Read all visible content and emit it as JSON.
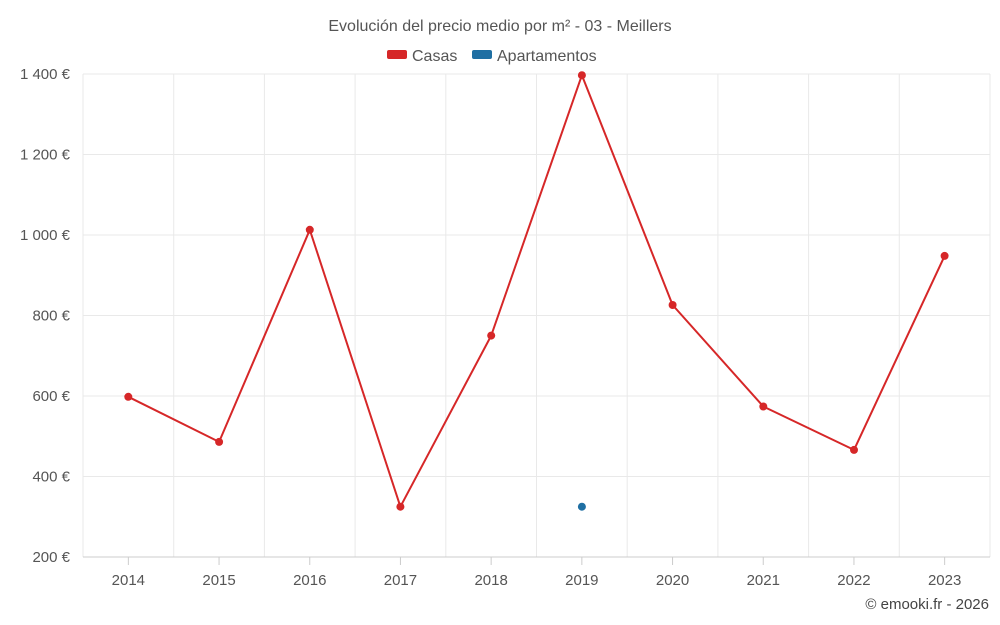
{
  "chart_data": {
    "type": "line",
    "title": "Evolución del precio medio por m² - 03 - Meillers",
    "categories": [
      "2014",
      "2015",
      "2016",
      "2017",
      "2018",
      "2019",
      "2020",
      "2021",
      "2022",
      "2023"
    ],
    "series": [
      {
        "name": "Casas",
        "color": "#d62728",
        "values": [
          598,
          486,
          1013,
          325,
          750,
          1397,
          826,
          574,
          466,
          948
        ]
      },
      {
        "name": "Apartamentos",
        "color": "#1f6fa3",
        "values": [
          null,
          null,
          null,
          null,
          null,
          325,
          null,
          null,
          null,
          null
        ]
      }
    ],
    "ylim": [
      200,
      1400
    ],
    "yticks": [
      200,
      400,
      600,
      800,
      1000,
      1200,
      1400
    ],
    "ytick_labels": [
      "200 €",
      "400 €",
      "600 €",
      "800 €",
      "1 000 €",
      "1 200 €",
      "1 400 €"
    ],
    "xlabel": "",
    "ylabel": "",
    "legend_position": "top-center",
    "grid": true
  },
  "credit": "© emooki.fr - 2026"
}
